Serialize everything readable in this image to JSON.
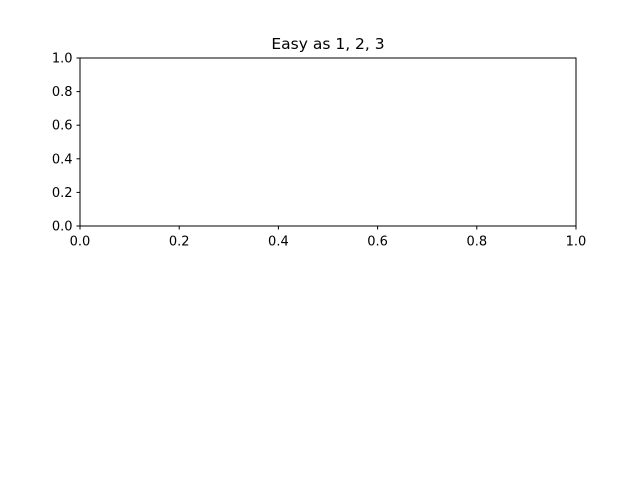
{
  "chart_data": {
    "type": "line",
    "title": "Easy as 1, 2, 3",
    "xlabel": "",
    "ylabel": "",
    "xlim": [
      0.0,
      1.0
    ],
    "ylim": [
      0.0,
      1.0
    ],
    "series": [],
    "grid": false,
    "x_ticks": [
      "0.0",
      "0.2",
      "0.4",
      "0.6",
      "0.8",
      "1.0"
    ],
    "y_ticks": [
      "0.0",
      "0.2",
      "0.4",
      "0.6",
      "0.8",
      "1.0"
    ],
    "colors": {
      "axes": "#000000",
      "background": "#ffffff"
    }
  }
}
